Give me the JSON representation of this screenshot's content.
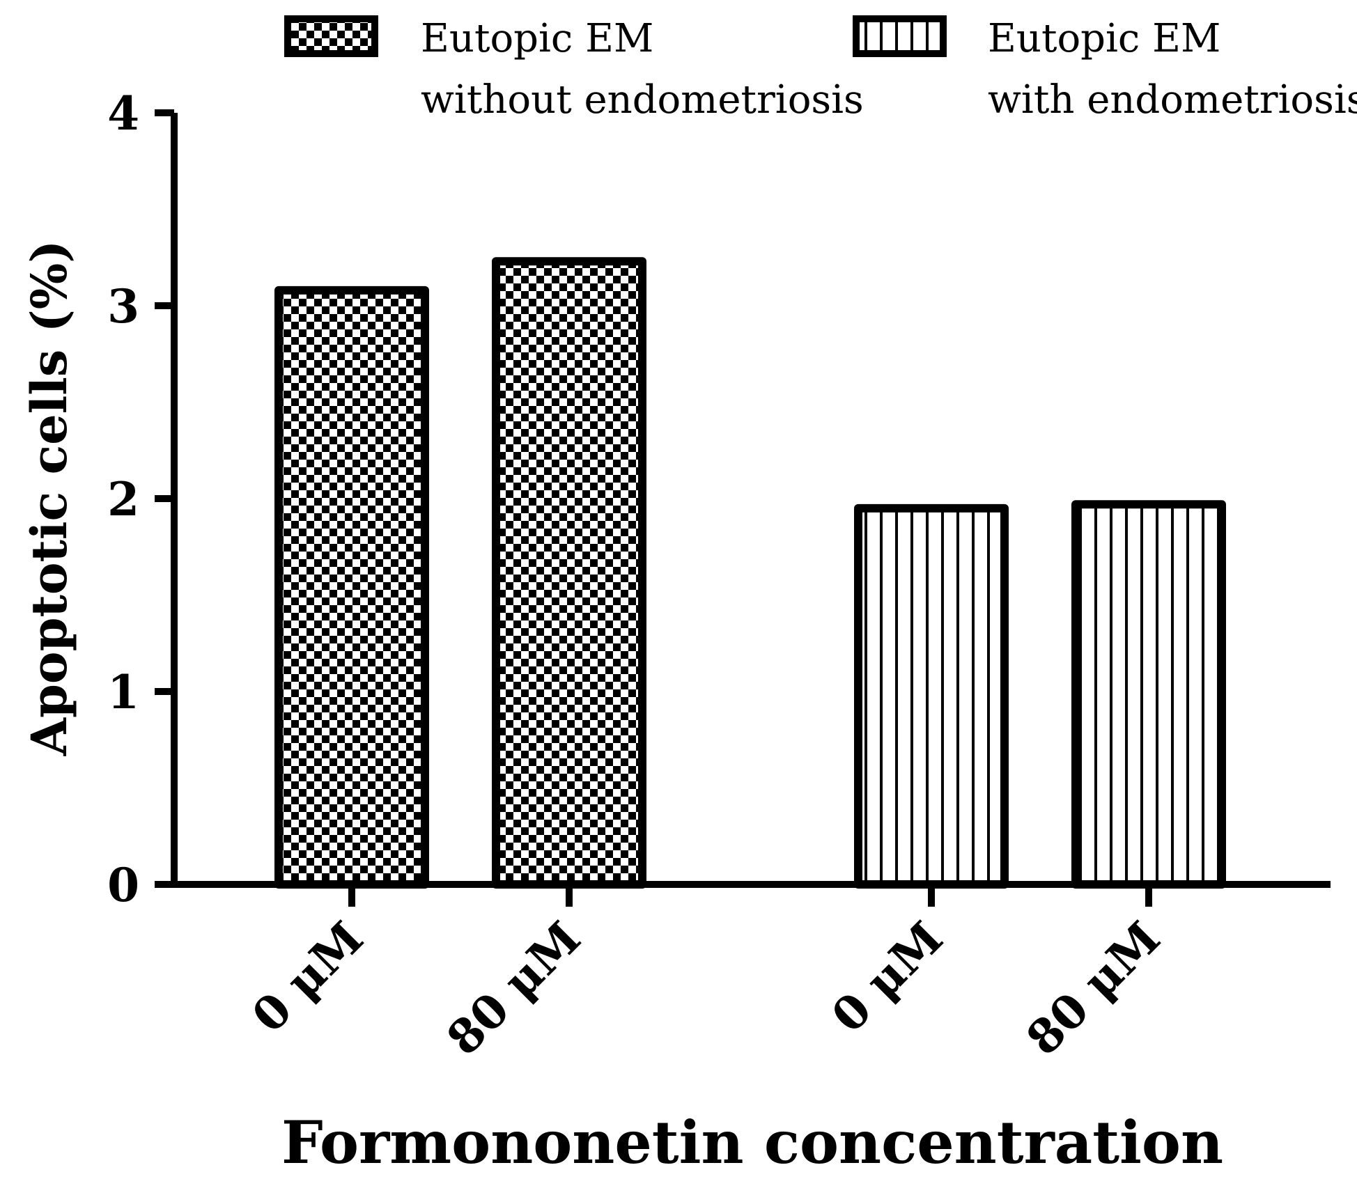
{
  "chart_data": {
    "type": "bar",
    "xlabel": "Formononetin concentration",
    "ylabel": "Apoptotic cells (%)",
    "ylim": [
      0,
      4
    ],
    "yticks": [
      "0",
      "1",
      "2",
      "3",
      "4"
    ],
    "grid": false,
    "legend_position": "top",
    "groups": [
      {
        "series": "Eutopic EM without endometriosis",
        "categories": [
          "0 μM",
          "80 μM"
        ],
        "values": [
          3.08,
          3.23
        ],
        "pattern": "checker"
      },
      {
        "series": "Eutopic EM with endometriosis",
        "categories": [
          "0 μM",
          "80 μM"
        ],
        "values": [
          1.95,
          1.97
        ],
        "pattern": "vertical-stripes"
      }
    ],
    "legend": [
      {
        "line1": "Eutopic EM",
        "line2": "without endometriosis",
        "pattern": "checker"
      },
      {
        "line1": "Eutopic EM",
        "line2": "with endometriosis",
        "pattern": "vertical-stripes"
      }
    ]
  }
}
